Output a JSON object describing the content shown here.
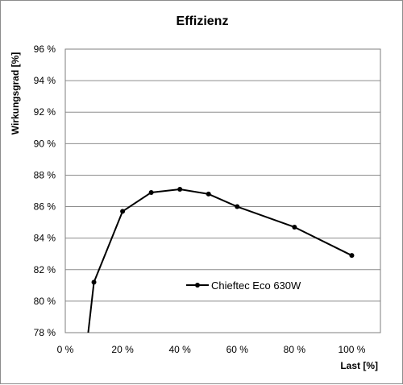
{
  "chart_data": {
    "type": "line",
    "title": "Effizienz",
    "xlabel": "Last [%]",
    "ylabel": "Wirkungsgrad [%]",
    "xlim": [
      0,
      110
    ],
    "ylim": [
      78,
      96
    ],
    "x_ticks": [
      0,
      20,
      40,
      60,
      80,
      100
    ],
    "x_tick_labels": [
      "0 %",
      "20 %",
      "40 %",
      "60 %",
      "80 %",
      "100 %"
    ],
    "y_ticks": [
      78,
      80,
      82,
      84,
      86,
      88,
      90,
      92,
      94,
      96
    ],
    "y_tick_labels": [
      "78 %",
      "80 %",
      "82 %",
      "84 %",
      "86 %",
      "88 %",
      "90 %",
      "92 %",
      "94 %",
      "96 %"
    ],
    "grid": "horizontal",
    "legend_position": "inside-lower-center",
    "series": [
      {
        "name": "Chieftec Eco 630W",
        "color": "#000000",
        "x": [
          8,
          10,
          20,
          30,
          40,
          50,
          60,
          80,
          100
        ],
        "y": [
          78.0,
          81.2,
          85.7,
          86.9,
          87.1,
          86.8,
          86.0,
          84.7,
          82.9
        ],
        "markers": [
          false,
          true,
          true,
          true,
          true,
          true,
          true,
          true,
          true
        ]
      }
    ]
  }
}
